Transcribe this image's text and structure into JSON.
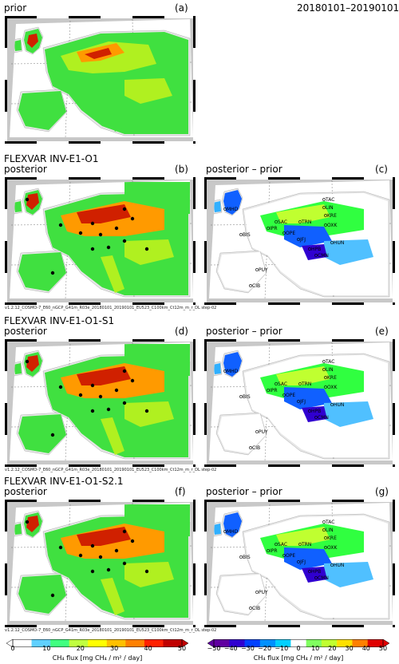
{
  "header": {
    "date_range": "20180101–20190101"
  },
  "panels": {
    "a": {
      "title": "prior",
      "letter": "(a)"
    },
    "b": {
      "title_line1": "FLEXVAR INV-E1-O1",
      "title_line2": "posterior",
      "letter": "(b)",
      "footer": "v1.2.12_COSMO-7_E60_nGCP_G41m_R03e_20180101_20190101_EU523_C100km_Ct12m_m_r_DL step-02"
    },
    "c": {
      "title": "posterior – prior",
      "letter": "(c)"
    },
    "d": {
      "title_line1": "FLEXVAR INV-E1-O1-S1",
      "title_line2": "posterior",
      "letter": "(d)",
      "footer": "v1.2.12_COSMO-7_E60_nGCP_G41m_R03e_20180101_20190101_EU523_C100km_Ct12m_m_r_DL step-02"
    },
    "e": {
      "title": "posterior – prior",
      "letter": "(e)"
    },
    "f": {
      "title_line1": "FLEXVAR INV-E1-O1-S2.1",
      "title_line2": "posterior",
      "letter": "(f)",
      "footer": "v1.2.12_COSMO-7_E60_nGCP_G41m_R03e_20180101_20190101_EU523_C100km_Ct12m_m_r_DL step-02"
    },
    "g": {
      "title": "posterior – prior",
      "letter": "(g)"
    }
  },
  "stations": [
    "MHD",
    "BIS",
    "IPR",
    "HUN",
    "KRE",
    "CMN",
    "PUY",
    "TAC",
    "CIB",
    "HPB",
    "OXK",
    "TRN",
    "OPE",
    "LIN",
    "SAC",
    "JFJ"
  ],
  "colorbar_left": {
    "ticks": [
      "0",
      "10",
      "20",
      "30",
      "40",
      "50"
    ],
    "unit": "CH₄ flux [mg CH₄ / m² / day]",
    "colors": [
      "#ffffff",
      "#60d0ff",
      "#40ff80",
      "#c0ff40",
      "#ffff00",
      "#ffc000",
      "#ff8000",
      "#ff2000",
      "#c00000"
    ]
  },
  "colorbar_right": {
    "ticks": [
      "−50",
      "−40",
      "−30",
      "−20",
      "−10",
      "0",
      "10",
      "20",
      "30",
      "40",
      "50"
    ],
    "unit": "CH₄ flux [mg CH₄ / m² / day]",
    "colors": [
      "#6000a0",
      "#3000d0",
      "#0040ff",
      "#0090ff",
      "#00d0ff",
      "#ffffff",
      "#80ff60",
      "#c0ff30",
      "#ffe000",
      "#ff8000",
      "#e00000"
    ]
  },
  "colors": {
    "sea": "#ffffff",
    "outside_domain": "#c8c8c8",
    "land_low": "#40e040",
    "land_mid": "#b0f020",
    "land_high": "#ff9a00",
    "land_very_high": "#d02000",
    "diff_neg": "#1060ff",
    "diff_pos": "#30ff40"
  }
}
